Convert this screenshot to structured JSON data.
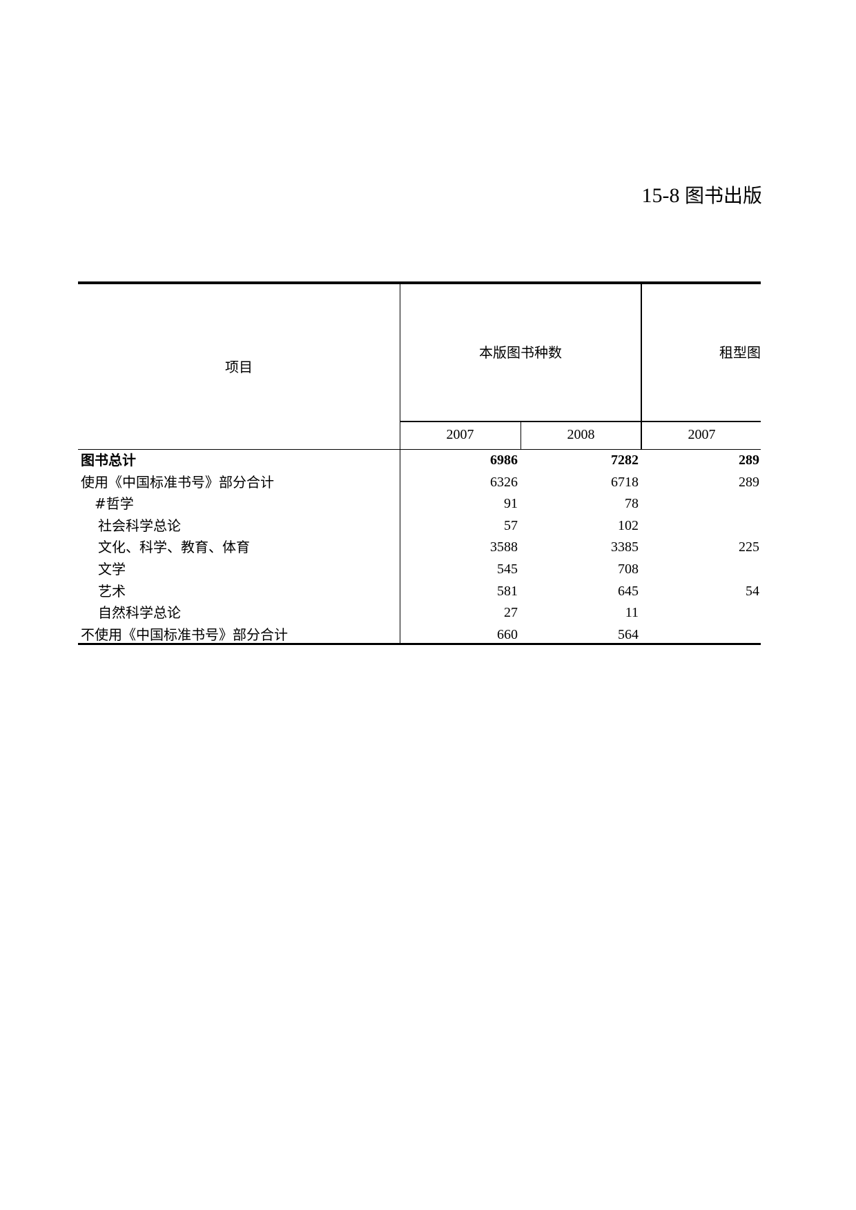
{
  "title": {
    "number": "15-8",
    "text": "图书出版"
  },
  "table": {
    "header": {
      "item_label": "项目",
      "groups": [
        "本版图书种数",
        "租型图"
      ],
      "years": [
        "2007",
        "2008",
        "2007"
      ]
    },
    "rows": [
      {
        "label": "图书总计",
        "bold": true,
        "indent": 0,
        "values": [
          "6986",
          "7282",
          "289"
        ]
      },
      {
        "label": "使用《中国标准书号》部分合计",
        "bold": false,
        "indent": 0,
        "values": [
          "6326",
          "6718",
          "289"
        ]
      },
      {
        "label": "#哲学",
        "bold": false,
        "indent": 1,
        "values": [
          "91",
          "78",
          ""
        ]
      },
      {
        "label": "社会科学总论",
        "bold": false,
        "indent": 2,
        "values": [
          "57",
          "102",
          ""
        ]
      },
      {
        "label": "文化、科学、教育、体育",
        "bold": false,
        "indent": 2,
        "values": [
          "3588",
          "3385",
          "225"
        ]
      },
      {
        "label": "文学",
        "bold": false,
        "indent": 2,
        "values": [
          "545",
          "708",
          ""
        ]
      },
      {
        "label": "艺术",
        "bold": false,
        "indent": 2,
        "values": [
          "581",
          "645",
          "54"
        ]
      },
      {
        "label": "自然科学总论",
        "bold": false,
        "indent": 2,
        "values": [
          "27",
          "11",
          ""
        ]
      },
      {
        "label": "不使用《中国标准书号》部分合计",
        "bold": false,
        "indent": 0,
        "values": [
          "660",
          "564",
          ""
        ]
      }
    ]
  }
}
